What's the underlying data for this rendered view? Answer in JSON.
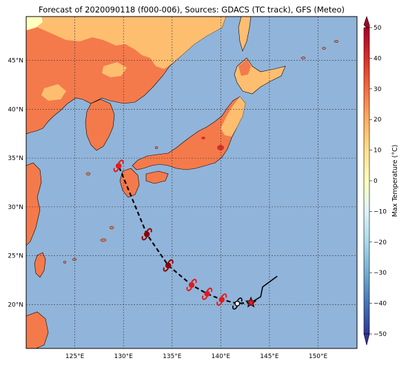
{
  "title": "Forecast of 2020090118 (f000-006), Sources: GDACS (TC track), GFS (Meteo)",
  "map": {
    "lon_range": [
      120,
      154
    ],
    "lat_range": [
      15.5,
      49.5
    ],
    "lon_ticks": [
      "125°E",
      "130°E",
      "135°E",
      "140°E",
      "145°E",
      "150°E"
    ],
    "lon_values": [
      125,
      130,
      135,
      140,
      145,
      150
    ],
    "lat_ticks": [
      "20°N",
      "25°N",
      "30°N",
      "35°N",
      "40°N",
      "45°N"
    ],
    "lat_values": [
      20,
      25,
      30,
      35,
      40,
      45
    ],
    "gridlines": true,
    "ocean_color": "#91b4da",
    "land_color_warm": "#f47a4b",
    "land_color_mild": "#fdbe70"
  },
  "colorbar": {
    "label": "Max Temperature (°C)",
    "ticks": [
      "50",
      "40",
      "30",
      "20",
      "10",
      "0",
      "−10",
      "−20",
      "−30",
      "−40",
      "−50"
    ],
    "tick_values": [
      50,
      40,
      30,
      20,
      10,
      0,
      -10,
      -20,
      -30,
      -40,
      -50
    ],
    "range": [
      -50,
      50
    ],
    "colors": [
      "#313695",
      "#4575b4",
      "#74add1",
      "#abd9e9",
      "#e0f3f8",
      "#ffffbf",
      "#fee090",
      "#fdae61",
      "#f46d43",
      "#d73027",
      "#a50026"
    ]
  },
  "track": {
    "past": [
      [
        145.8,
        22.9
      ],
      [
        144.3,
        21.8
      ],
      [
        144.1,
        20.8
      ],
      [
        143.1,
        20.2
      ]
    ],
    "current_position": [
      143.1,
      20.2
    ],
    "forecast": [
      {
        "lon": 141.7,
        "lat": 20.1,
        "intensity": "depression"
      },
      {
        "lon": 140.1,
        "lat": 20.5,
        "intensity": "typhoon"
      },
      {
        "lon": 138.6,
        "lat": 21.1,
        "intensity": "typhoon"
      },
      {
        "lon": 137.0,
        "lat": 22.0,
        "intensity": "typhoon"
      },
      {
        "lon": 134.6,
        "lat": 24.0,
        "intensity": "super-typhoon"
      },
      {
        "lon": 132.4,
        "lat": 27.2,
        "intensity": "super-typhoon"
      },
      {
        "lon": 129.5,
        "lat": 34.2,
        "intensity": "typhoon"
      }
    ]
  }
}
